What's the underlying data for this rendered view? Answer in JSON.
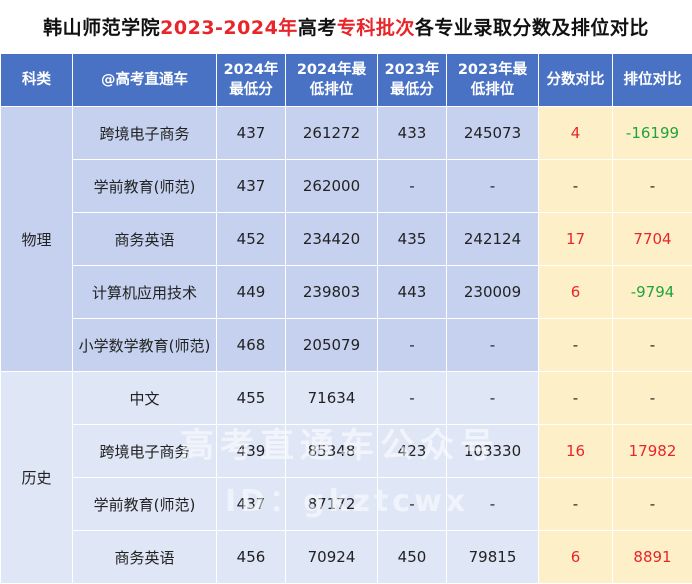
{
  "title": {
    "prefix": "韩山师范学院",
    "years": "2023-2024年",
    "mid": "高考",
    "batch": "专科批次",
    "suffix": "各专业录取分数及排位对比"
  },
  "headers": {
    "subject": "科类",
    "major": "@高考直通车",
    "score2024_a": "2024年",
    "score2024_b": "最低分",
    "rank2024_a": "2024年最",
    "rank2024_b": "低排位",
    "score2023_a": "2023年",
    "score2023_b": "最低分",
    "rank2023_a": "2023年最",
    "rank2023_b": "低排位",
    "score_cmp": "分数对比",
    "rank_cmp": "排位对比"
  },
  "groups": {
    "physics": "物理",
    "history": "历史"
  },
  "rows": [
    {
      "major": "跨境电子商务",
      "s24": "437",
      "r24": "261272",
      "s23": "433",
      "r23": "245073",
      "sc": "4",
      "rc": "-16199"
    },
    {
      "major": "学前教育(师范)",
      "s24": "437",
      "r24": "262000",
      "s23": "-",
      "r23": "-",
      "sc": "-",
      "rc": "-"
    },
    {
      "major": "商务英语",
      "s24": "452",
      "r24": "234420",
      "s23": "435",
      "r23": "242124",
      "sc": "17",
      "rc": "7704"
    },
    {
      "major": "计算机应用技术",
      "s24": "449",
      "r24": "239803",
      "s23": "443",
      "r23": "230009",
      "sc": "6",
      "rc": "-9794"
    },
    {
      "major": "小学数学教育(师范)",
      "s24": "468",
      "r24": "205079",
      "s23": "-",
      "r23": "-",
      "sc": "-",
      "rc": "-"
    },
    {
      "major": "中文",
      "s24": "455",
      "r24": "71634",
      "s23": "-",
      "r23": "-",
      "sc": "-",
      "rc": "-"
    },
    {
      "major": "跨境电子商务",
      "s24": "439",
      "r24": "85348",
      "s23": "423",
      "r23": "103330",
      "sc": "16",
      "rc": "17982"
    },
    {
      "major": "学前教育(师范)",
      "s24": "437",
      "r24": "87172",
      "s23": "-",
      "r23": "-",
      "sc": "-",
      "rc": "-"
    },
    {
      "major": "商务英语",
      "s24": "456",
      "r24": "70924",
      "s23": "450",
      "r23": "79815",
      "sc": "6",
      "rc": "8891"
    }
  ],
  "colors": {
    "header": "#4a72c4",
    "physics_bg": "#c5d1ee",
    "history_bg": "#dfe6f6",
    "compare_bg": "#fdf0c8",
    "positive": "#e8262a",
    "negative": "#22a33a"
  },
  "watermark": {
    "line1": "高考直通车公众号",
    "line2": "ID：gkztcwx"
  }
}
